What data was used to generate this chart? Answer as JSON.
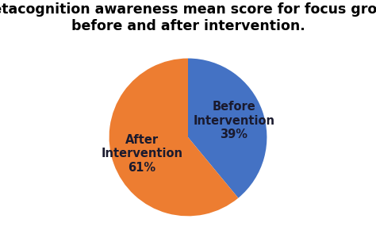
{
  "title": "Metacognition awareness mean score for focus group\nbefore and after intervention.",
  "slices": [
    39,
    61
  ],
  "labels": [
    "Before\nIntervention\n39%",
    "After\nIntervention\n61%"
  ],
  "colors": [
    "#4472C4",
    "#ED7D31"
  ],
  "startangle": 90,
  "title_fontsize": 12.5,
  "label_fontsize": 10.5,
  "label_color": "#1a1a2e",
  "background_color": "#ffffff",
  "title_fontweight": "bold",
  "labeldistance": 0.62
}
